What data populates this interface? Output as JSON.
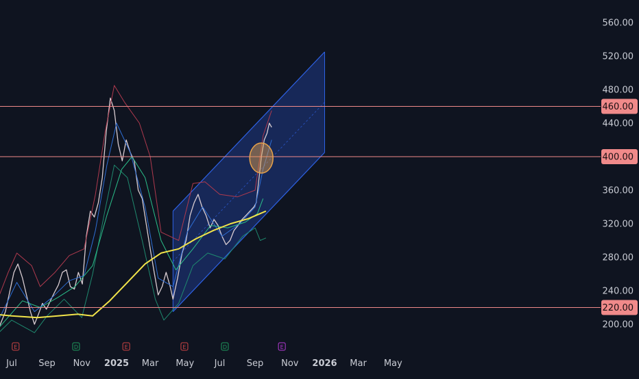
{
  "chart_data": {
    "type": "line",
    "title": "",
    "xlabel": "",
    "ylabel": "",
    "ylim": [
      185,
      575
    ],
    "y_ticks": [
      200,
      240,
      280,
      320,
      360,
      400,
      440,
      480,
      520,
      560
    ],
    "x_ticks": [
      {
        "label": "Jul",
        "date": "2024-07-01",
        "bold": false
      },
      {
        "label": "Sep",
        "date": "2024-09-01",
        "bold": false
      },
      {
        "label": "Nov",
        "date": "2024-11-01",
        "bold": false
      },
      {
        "label": "2025",
        "date": "2025-01-01",
        "bold": true
      },
      {
        "label": "Mar",
        "date": "2025-03-01",
        "bold": false
      },
      {
        "label": "May",
        "date": "2025-05-01",
        "bold": false
      },
      {
        "label": "Jul",
        "date": "2025-07-01",
        "bold": false
      },
      {
        "label": "Sep",
        "date": "2025-09-01",
        "bold": false
      },
      {
        "label": "Nov",
        "date": "2025-11-01",
        "bold": false
      },
      {
        "label": "2026",
        "date": "2026-01-01",
        "bold": true
      },
      {
        "label": "Mar",
        "date": "2026-03-01",
        "bold": false
      },
      {
        "label": "May",
        "date": "2026-05-01",
        "bold": false
      }
    ],
    "horizontal_levels": [
      {
        "value": 460,
        "label": "460.00"
      },
      {
        "value": 400,
        "label": "400.00"
      },
      {
        "value": 220,
        "label": "220.00"
      }
    ],
    "series": [
      {
        "kind": "close",
        "color": "#d9cdd2",
        "points": [
          [
            "2024-06-01",
            190
          ],
          [
            "2024-06-10",
            198
          ],
          [
            "2024-06-20",
            215
          ],
          [
            "2024-06-28",
            240
          ],
          [
            "2024-07-05",
            262
          ],
          [
            "2024-07-12",
            272
          ],
          [
            "2024-07-20",
            255
          ],
          [
            "2024-07-27",
            235
          ],
          [
            "2024-08-03",
            215
          ],
          [
            "2024-08-10",
            200
          ],
          [
            "2024-08-17",
            212
          ],
          [
            "2024-08-24",
            225
          ],
          [
            "2024-08-31",
            218
          ],
          [
            "2024-09-07",
            228
          ],
          [
            "2024-09-14",
            238
          ],
          [
            "2024-09-21",
            247
          ],
          [
            "2024-09-28",
            262
          ],
          [
            "2024-10-05",
            265
          ],
          [
            "2024-10-12",
            245
          ],
          [
            "2024-10-19",
            242
          ],
          [
            "2024-10-26",
            262
          ],
          [
            "2024-11-02",
            248
          ],
          [
            "2024-11-09",
            305
          ],
          [
            "2024-11-16",
            335
          ],
          [
            "2024-11-23",
            328
          ],
          [
            "2024-11-30",
            345
          ],
          [
            "2024-12-07",
            375
          ],
          [
            "2024-12-14",
            430
          ],
          [
            "2024-12-21",
            470
          ],
          [
            "2024-12-28",
            455
          ],
          [
            "2025-01-04",
            415
          ],
          [
            "2025-01-11",
            395
          ],
          [
            "2025-01-18",
            420
          ],
          [
            "2025-01-25",
            405
          ],
          [
            "2025-02-01",
            395
          ],
          [
            "2025-02-08",
            360
          ],
          [
            "2025-02-15",
            350
          ],
          [
            "2025-02-22",
            320
          ],
          [
            "2025-03-01",
            290
          ],
          [
            "2025-03-08",
            262
          ],
          [
            "2025-03-15",
            235
          ],
          [
            "2025-03-22",
            245
          ],
          [
            "2025-03-29",
            262
          ],
          [
            "2025-04-05",
            245
          ],
          [
            "2025-04-10",
            230
          ],
          [
            "2025-04-18",
            255
          ],
          [
            "2025-04-26",
            285
          ],
          [
            "2025-05-03",
            300
          ],
          [
            "2025-05-10",
            330
          ],
          [
            "2025-05-17",
            345
          ],
          [
            "2025-05-24",
            355
          ],
          [
            "2025-05-31",
            340
          ],
          [
            "2025-06-07",
            330
          ],
          [
            "2025-06-14",
            315
          ],
          [
            "2025-06-21",
            325
          ],
          [
            "2025-06-28",
            318
          ],
          [
            "2025-07-05",
            305
          ],
          [
            "2025-07-12",
            295
          ],
          [
            "2025-07-19",
            300
          ],
          [
            "2025-07-26",
            312
          ],
          [
            "2025-08-02",
            318
          ],
          [
            "2025-08-09",
            325
          ],
          [
            "2025-08-16",
            330
          ],
          [
            "2025-08-23",
            335
          ],
          [
            "2025-08-30",
            340
          ],
          [
            "2025-09-03",
            345
          ],
          [
            "2025-09-08",
            375
          ],
          [
            "2025-09-12",
            400
          ],
          [
            "2025-09-17",
            420
          ],
          [
            "2025-09-22",
            428
          ],
          [
            "2025-09-26",
            440
          ],
          [
            "2025-09-30",
            435
          ]
        ]
      },
      {
        "kind": "bollinger-upper",
        "color": "#b03a4e",
        "points": [
          [
            "2024-06-01",
            220
          ],
          [
            "2024-06-25",
            262
          ],
          [
            "2024-07-10",
            285
          ],
          [
            "2024-08-05",
            270
          ],
          [
            "2024-08-20",
            245
          ],
          [
            "2024-09-15",
            262
          ],
          [
            "2024-10-10",
            282
          ],
          [
            "2024-11-05",
            290
          ],
          [
            "2024-11-25",
            355
          ],
          [
            "2024-12-12",
            430
          ],
          [
            "2024-12-28",
            485
          ],
          [
            "2025-01-15",
            465
          ],
          [
            "2025-02-10",
            440
          ],
          [
            "2025-03-01",
            400
          ],
          [
            "2025-03-20",
            310
          ],
          [
            "2025-04-20",
            300
          ],
          [
            "2025-05-15",
            368
          ],
          [
            "2025-06-05",
            370
          ],
          [
            "2025-07-01",
            355
          ],
          [
            "2025-08-01",
            352
          ],
          [
            "2025-09-01",
            360
          ],
          [
            "2025-09-15",
            425
          ],
          [
            "2025-09-30",
            455
          ]
        ]
      },
      {
        "kind": "bollinger-lower",
        "color": "#1f8a6f",
        "points": [
          [
            "2024-06-01",
            185
          ],
          [
            "2024-07-01",
            205
          ],
          [
            "2024-08-10",
            190
          ],
          [
            "2024-09-01",
            210
          ],
          [
            "2024-10-01",
            230
          ],
          [
            "2024-11-01",
            208
          ],
          [
            "2024-11-20",
            260
          ],
          [
            "2024-12-10",
            330
          ],
          [
            "2024-12-28",
            390
          ],
          [
            "2025-01-20",
            375
          ],
          [
            "2025-02-15",
            300
          ],
          [
            "2025-03-10",
            230
          ],
          [
            "2025-03-25",
            205
          ],
          [
            "2025-04-20",
            225
          ],
          [
            "2025-05-15",
            270
          ],
          [
            "2025-06-10",
            285
          ],
          [
            "2025-07-10",
            278
          ],
          [
            "2025-08-10",
            305
          ],
          [
            "2025-09-01",
            315
          ],
          [
            "2025-09-10",
            300
          ],
          [
            "2025-09-20",
            303
          ]
        ]
      },
      {
        "kind": "ma-fast",
        "color": "#2f6fd6",
        "points": [
          [
            "2024-06-01",
            195
          ],
          [
            "2024-07-10",
            250
          ],
          [
            "2024-08-10",
            215
          ],
          [
            "2024-09-10",
            232
          ],
          [
            "2024-10-10",
            252
          ],
          [
            "2024-11-05",
            258
          ],
          [
            "2024-11-25",
            312
          ],
          [
            "2024-12-15",
            390
          ],
          [
            "2025-01-01",
            440
          ],
          [
            "2025-01-25",
            405
          ],
          [
            "2025-02-20",
            340
          ],
          [
            "2025-03-15",
            255
          ],
          [
            "2025-04-10",
            245
          ],
          [
            "2025-05-05",
            310
          ],
          [
            "2025-06-01",
            340
          ],
          [
            "2025-07-05",
            305
          ],
          [
            "2025-08-05",
            320
          ],
          [
            "2025-09-01",
            340
          ],
          [
            "2025-09-15",
            385
          ],
          [
            "2025-09-30",
            420
          ]
        ]
      },
      {
        "kind": "ma-medium",
        "color": "#2bbf8a",
        "points": [
          [
            "2024-06-01",
            190
          ],
          [
            "2024-07-20",
            228
          ],
          [
            "2024-08-20",
            220
          ],
          [
            "2024-09-20",
            232
          ],
          [
            "2024-10-20",
            245
          ],
          [
            "2024-11-20",
            270
          ],
          [
            "2024-12-15",
            330
          ],
          [
            "2025-01-10",
            385
          ],
          [
            "2025-01-28",
            400
          ],
          [
            "2025-02-20",
            375
          ],
          [
            "2025-03-20",
            300
          ],
          [
            "2025-04-15",
            265
          ],
          [
            "2025-05-15",
            290
          ],
          [
            "2025-06-15",
            318
          ],
          [
            "2025-07-15",
            315
          ],
          [
            "2025-08-15",
            322
          ],
          [
            "2025-09-05",
            332
          ],
          [
            "2025-09-15",
            350
          ]
        ]
      },
      {
        "kind": "ma-slow",
        "color": "#f2e44a",
        "points": [
          [
            "2024-06-01",
            212
          ],
          [
            "2024-07-01",
            210
          ],
          [
            "2024-08-15",
            208
          ],
          [
            "2024-09-20",
            210
          ],
          [
            "2024-10-25",
            212
          ],
          [
            "2024-11-20",
            210
          ],
          [
            "2024-12-20",
            228
          ],
          [
            "2025-01-20",
            250
          ],
          [
            "2025-02-20",
            272
          ],
          [
            "2025-03-20",
            285
          ],
          [
            "2025-04-20",
            290
          ],
          [
            "2025-05-20",
            302
          ],
          [
            "2025-06-20",
            312
          ],
          [
            "2025-07-20",
            320
          ],
          [
            "2025-08-20",
            326
          ],
          [
            "2025-09-20",
            335
          ]
        ]
      }
    ],
    "channel": {
      "color": "#2e62e6",
      "fill": "#1b2f6b",
      "start": "2025-04-10",
      "end": "2026-01-01",
      "lower_start": 215,
      "lower_end": 405,
      "upper_start": 335,
      "upper_end": 525
    },
    "highlight_circle": {
      "date": "2025-09-12",
      "value": 400,
      "color": "#e8a24a"
    },
    "event_markers": [
      {
        "date": "2024-07-08",
        "letter": "E",
        "color": "#d04545"
      },
      {
        "date": "2024-10-22",
        "letter": "D",
        "color": "#1f9c5e"
      },
      {
        "date": "2025-01-18",
        "letter": "E",
        "color": "#d04545"
      },
      {
        "date": "2025-04-30",
        "letter": "E",
        "color": "#d04545"
      },
      {
        "date": "2025-07-10",
        "letter": "D",
        "color": "#1f9c5e"
      },
      {
        "date": "2025-10-18",
        "letter": "E",
        "color": "#b73bd8"
      }
    ],
    "colors": {
      "background": "#0f1420",
      "axis_text": "#c9ccd4",
      "level_line": "#f08a8a",
      "level_badge_bg": "#f08a8a",
      "level_badge_text": "#1a0f12"
    }
  }
}
